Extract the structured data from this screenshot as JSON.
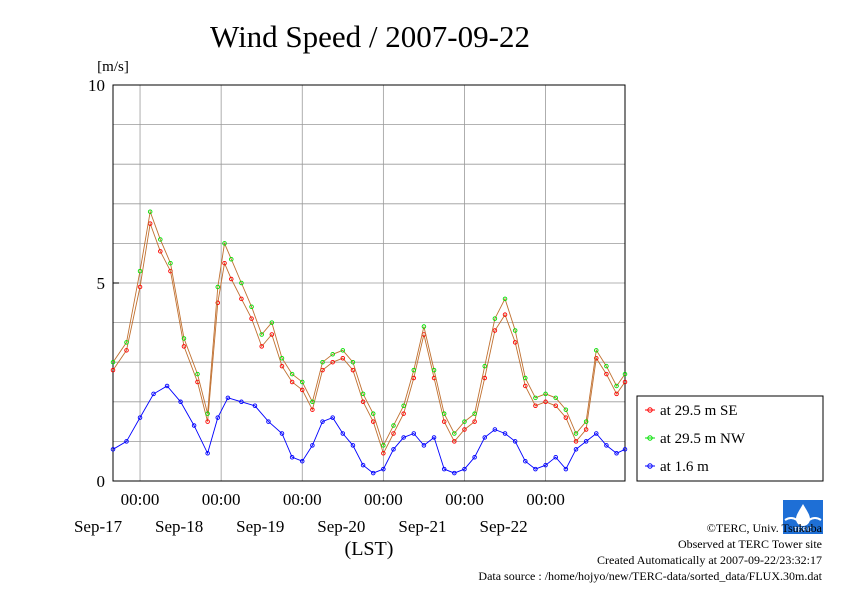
{
  "chart_data": {
    "type": "line",
    "title": "Wind Speed / 2007-09-22",
    "ylabel": "[m/s]",
    "xlabel": "(LST)",
    "ylim": [
      0,
      10
    ],
    "y_ticks": [
      0,
      5,
      10
    ],
    "x_domain": [
      "2007-09-16T16:00",
      "2007-09-22T23:30"
    ],
    "x_tick_time_label": "00:00",
    "x_ticks": [
      {
        "time": "2007-09-17T00:00",
        "date_label": "Sep-17"
      },
      {
        "time": "2007-09-18T00:00",
        "date_label": "Sep-18"
      },
      {
        "time": "2007-09-19T00:00",
        "date_label": "Sep-19"
      },
      {
        "time": "2007-09-20T00:00",
        "date_label": "Sep-20"
      },
      {
        "time": "2007-09-21T00:00",
        "date_label": "Sep-21"
      },
      {
        "time": "2007-09-22T00:00",
        "date_label": "Sep-22"
      }
    ],
    "grid": true,
    "legend_position": "right",
    "series": [
      {
        "name": "at 29.5 m SE",
        "color": "#ff0000",
        "marker": "circle",
        "x": [
          "2007-09-16T16:00",
          "2007-09-16T20:00",
          "2007-09-17T00:00",
          "2007-09-17T03:00",
          "2007-09-17T06:00",
          "2007-09-17T09:00",
          "2007-09-17T13:00",
          "2007-09-17T17:00",
          "2007-09-17T20:00",
          "2007-09-17T23:00",
          "2007-09-18T01:00",
          "2007-09-18T03:00",
          "2007-09-18T06:00",
          "2007-09-18T09:00",
          "2007-09-18T12:00",
          "2007-09-18T15:00",
          "2007-09-18T18:00",
          "2007-09-18T21:00",
          "2007-09-19T00:00",
          "2007-09-19T03:00",
          "2007-09-19T06:00",
          "2007-09-19T09:00",
          "2007-09-19T12:00",
          "2007-09-19T15:00",
          "2007-09-19T18:00",
          "2007-09-19T21:00",
          "2007-09-20T00:00",
          "2007-09-20T03:00",
          "2007-09-20T06:00",
          "2007-09-20T09:00",
          "2007-09-20T12:00",
          "2007-09-20T15:00",
          "2007-09-20T18:00",
          "2007-09-20T21:00",
          "2007-09-21T00:00",
          "2007-09-21T03:00",
          "2007-09-21T06:00",
          "2007-09-21T09:00",
          "2007-09-21T12:00",
          "2007-09-21T15:00",
          "2007-09-21T18:00",
          "2007-09-21T21:00",
          "2007-09-22T00:00",
          "2007-09-22T03:00",
          "2007-09-22T06:00",
          "2007-09-22T09:00",
          "2007-09-22T12:00",
          "2007-09-22T15:00",
          "2007-09-22T18:00",
          "2007-09-22T21:00",
          "2007-09-22T23:30"
        ],
        "values": [
          2.8,
          3.3,
          4.9,
          6.5,
          5.8,
          5.3,
          3.4,
          2.5,
          1.5,
          4.5,
          5.5,
          5.1,
          4.6,
          4.1,
          3.4,
          3.7,
          2.9,
          2.5,
          2.3,
          1.8,
          2.8,
          3.0,
          3.1,
          2.8,
          2.0,
          1.5,
          0.7,
          1.2,
          1.7,
          2.6,
          3.7,
          2.6,
          1.5,
          1.0,
          1.3,
          1.5,
          2.6,
          3.8,
          4.2,
          3.5,
          2.4,
          1.9,
          2.0,
          1.9,
          1.6,
          1.0,
          1.3,
          3.1,
          2.7,
          2.2,
          2.5
        ]
      },
      {
        "name": "at 29.5 m NW",
        "color": "#00e000",
        "marker": "circle",
        "x": [
          "2007-09-16T16:00",
          "2007-09-16T20:00",
          "2007-09-17T00:00",
          "2007-09-17T03:00",
          "2007-09-17T06:00",
          "2007-09-17T09:00",
          "2007-09-17T13:00",
          "2007-09-17T17:00",
          "2007-09-17T20:00",
          "2007-09-17T23:00",
          "2007-09-18T01:00",
          "2007-09-18T03:00",
          "2007-09-18T06:00",
          "2007-09-18T09:00",
          "2007-09-18T12:00",
          "2007-09-18T15:00",
          "2007-09-18T18:00",
          "2007-09-18T21:00",
          "2007-09-19T00:00",
          "2007-09-19T03:00",
          "2007-09-19T06:00",
          "2007-09-19T09:00",
          "2007-09-19T12:00",
          "2007-09-19T15:00",
          "2007-09-19T18:00",
          "2007-09-19T21:00",
          "2007-09-20T00:00",
          "2007-09-20T03:00",
          "2007-09-20T06:00",
          "2007-09-20T09:00",
          "2007-09-20T12:00",
          "2007-09-20T15:00",
          "2007-09-20T18:00",
          "2007-09-20T21:00",
          "2007-09-21T00:00",
          "2007-09-21T03:00",
          "2007-09-21T06:00",
          "2007-09-21T09:00",
          "2007-09-21T12:00",
          "2007-09-21T15:00",
          "2007-09-21T18:00",
          "2007-09-21T21:00",
          "2007-09-22T00:00",
          "2007-09-22T03:00",
          "2007-09-22T06:00",
          "2007-09-22T09:00",
          "2007-09-22T12:00",
          "2007-09-22T15:00",
          "2007-09-22T18:00",
          "2007-09-22T21:00",
          "2007-09-22T23:30"
        ],
        "values": [
          3.0,
          3.5,
          5.3,
          6.8,
          6.1,
          5.5,
          3.6,
          2.7,
          1.7,
          4.9,
          6.0,
          5.6,
          5.0,
          4.4,
          3.7,
          4.0,
          3.1,
          2.7,
          2.5,
          2.0,
          3.0,
          3.2,
          3.3,
          3.0,
          2.2,
          1.7,
          0.9,
          1.4,
          1.9,
          2.8,
          3.9,
          2.8,
          1.7,
          1.2,
          1.5,
          1.7,
          2.9,
          4.1,
          4.6,
          3.8,
          2.6,
          2.1,
          2.2,
          2.1,
          1.8,
          1.2,
          1.5,
          3.3,
          2.9,
          2.4,
          2.7
        ]
      },
      {
        "name": "at 1.6 m",
        "color": "#0000ff",
        "marker": "circle",
        "x": [
          "2007-09-16T16:00",
          "2007-09-16T20:00",
          "2007-09-17T00:00",
          "2007-09-17T04:00",
          "2007-09-17T08:00",
          "2007-09-17T12:00",
          "2007-09-17T16:00",
          "2007-09-17T20:00",
          "2007-09-17T23:00",
          "2007-09-18T02:00",
          "2007-09-18T06:00",
          "2007-09-18T10:00",
          "2007-09-18T14:00",
          "2007-09-18T18:00",
          "2007-09-18T21:00",
          "2007-09-19T00:00",
          "2007-09-19T03:00",
          "2007-09-19T06:00",
          "2007-09-19T09:00",
          "2007-09-19T12:00",
          "2007-09-19T15:00",
          "2007-09-19T18:00",
          "2007-09-19T21:00",
          "2007-09-20T00:00",
          "2007-09-20T03:00",
          "2007-09-20T06:00",
          "2007-09-20T09:00",
          "2007-09-20T12:00",
          "2007-09-20T15:00",
          "2007-09-20T18:00",
          "2007-09-20T21:00",
          "2007-09-21T00:00",
          "2007-09-21T03:00",
          "2007-09-21T06:00",
          "2007-09-21T09:00",
          "2007-09-21T12:00",
          "2007-09-21T15:00",
          "2007-09-21T18:00",
          "2007-09-21T21:00",
          "2007-09-22T00:00",
          "2007-09-22T03:00",
          "2007-09-22T06:00",
          "2007-09-22T09:00",
          "2007-09-22T12:00",
          "2007-09-22T15:00",
          "2007-09-22T18:00",
          "2007-09-22T21:00",
          "2007-09-22T23:30"
        ],
        "values": [
          0.8,
          1.0,
          1.6,
          2.2,
          2.4,
          2.0,
          1.4,
          0.7,
          1.6,
          2.1,
          2.0,
          1.9,
          1.5,
          1.2,
          0.6,
          0.5,
          0.9,
          1.5,
          1.6,
          1.2,
          0.9,
          0.4,
          0.2,
          0.3,
          0.8,
          1.1,
          1.2,
          0.9,
          1.1,
          0.3,
          0.2,
          0.3,
          0.6,
          1.1,
          1.3,
          1.2,
          1.0,
          0.5,
          0.3,
          0.4,
          0.6,
          0.3,
          0.8,
          1.0,
          1.2,
          0.9,
          0.7,
          0.8
        ]
      }
    ]
  },
  "credits": {
    "copyright": "©TERC, Univ. Tsukuba",
    "observed": "Observed at TERC Tower site",
    "created": "Created Automatically at 2007-09-22/23:32:17",
    "source": "Data source : /home/hojyo/new/TERC-data/sorted_data/FLUX.30m.dat"
  },
  "logo": {
    "text": "TERC",
    "color": "#1e6fd6"
  }
}
